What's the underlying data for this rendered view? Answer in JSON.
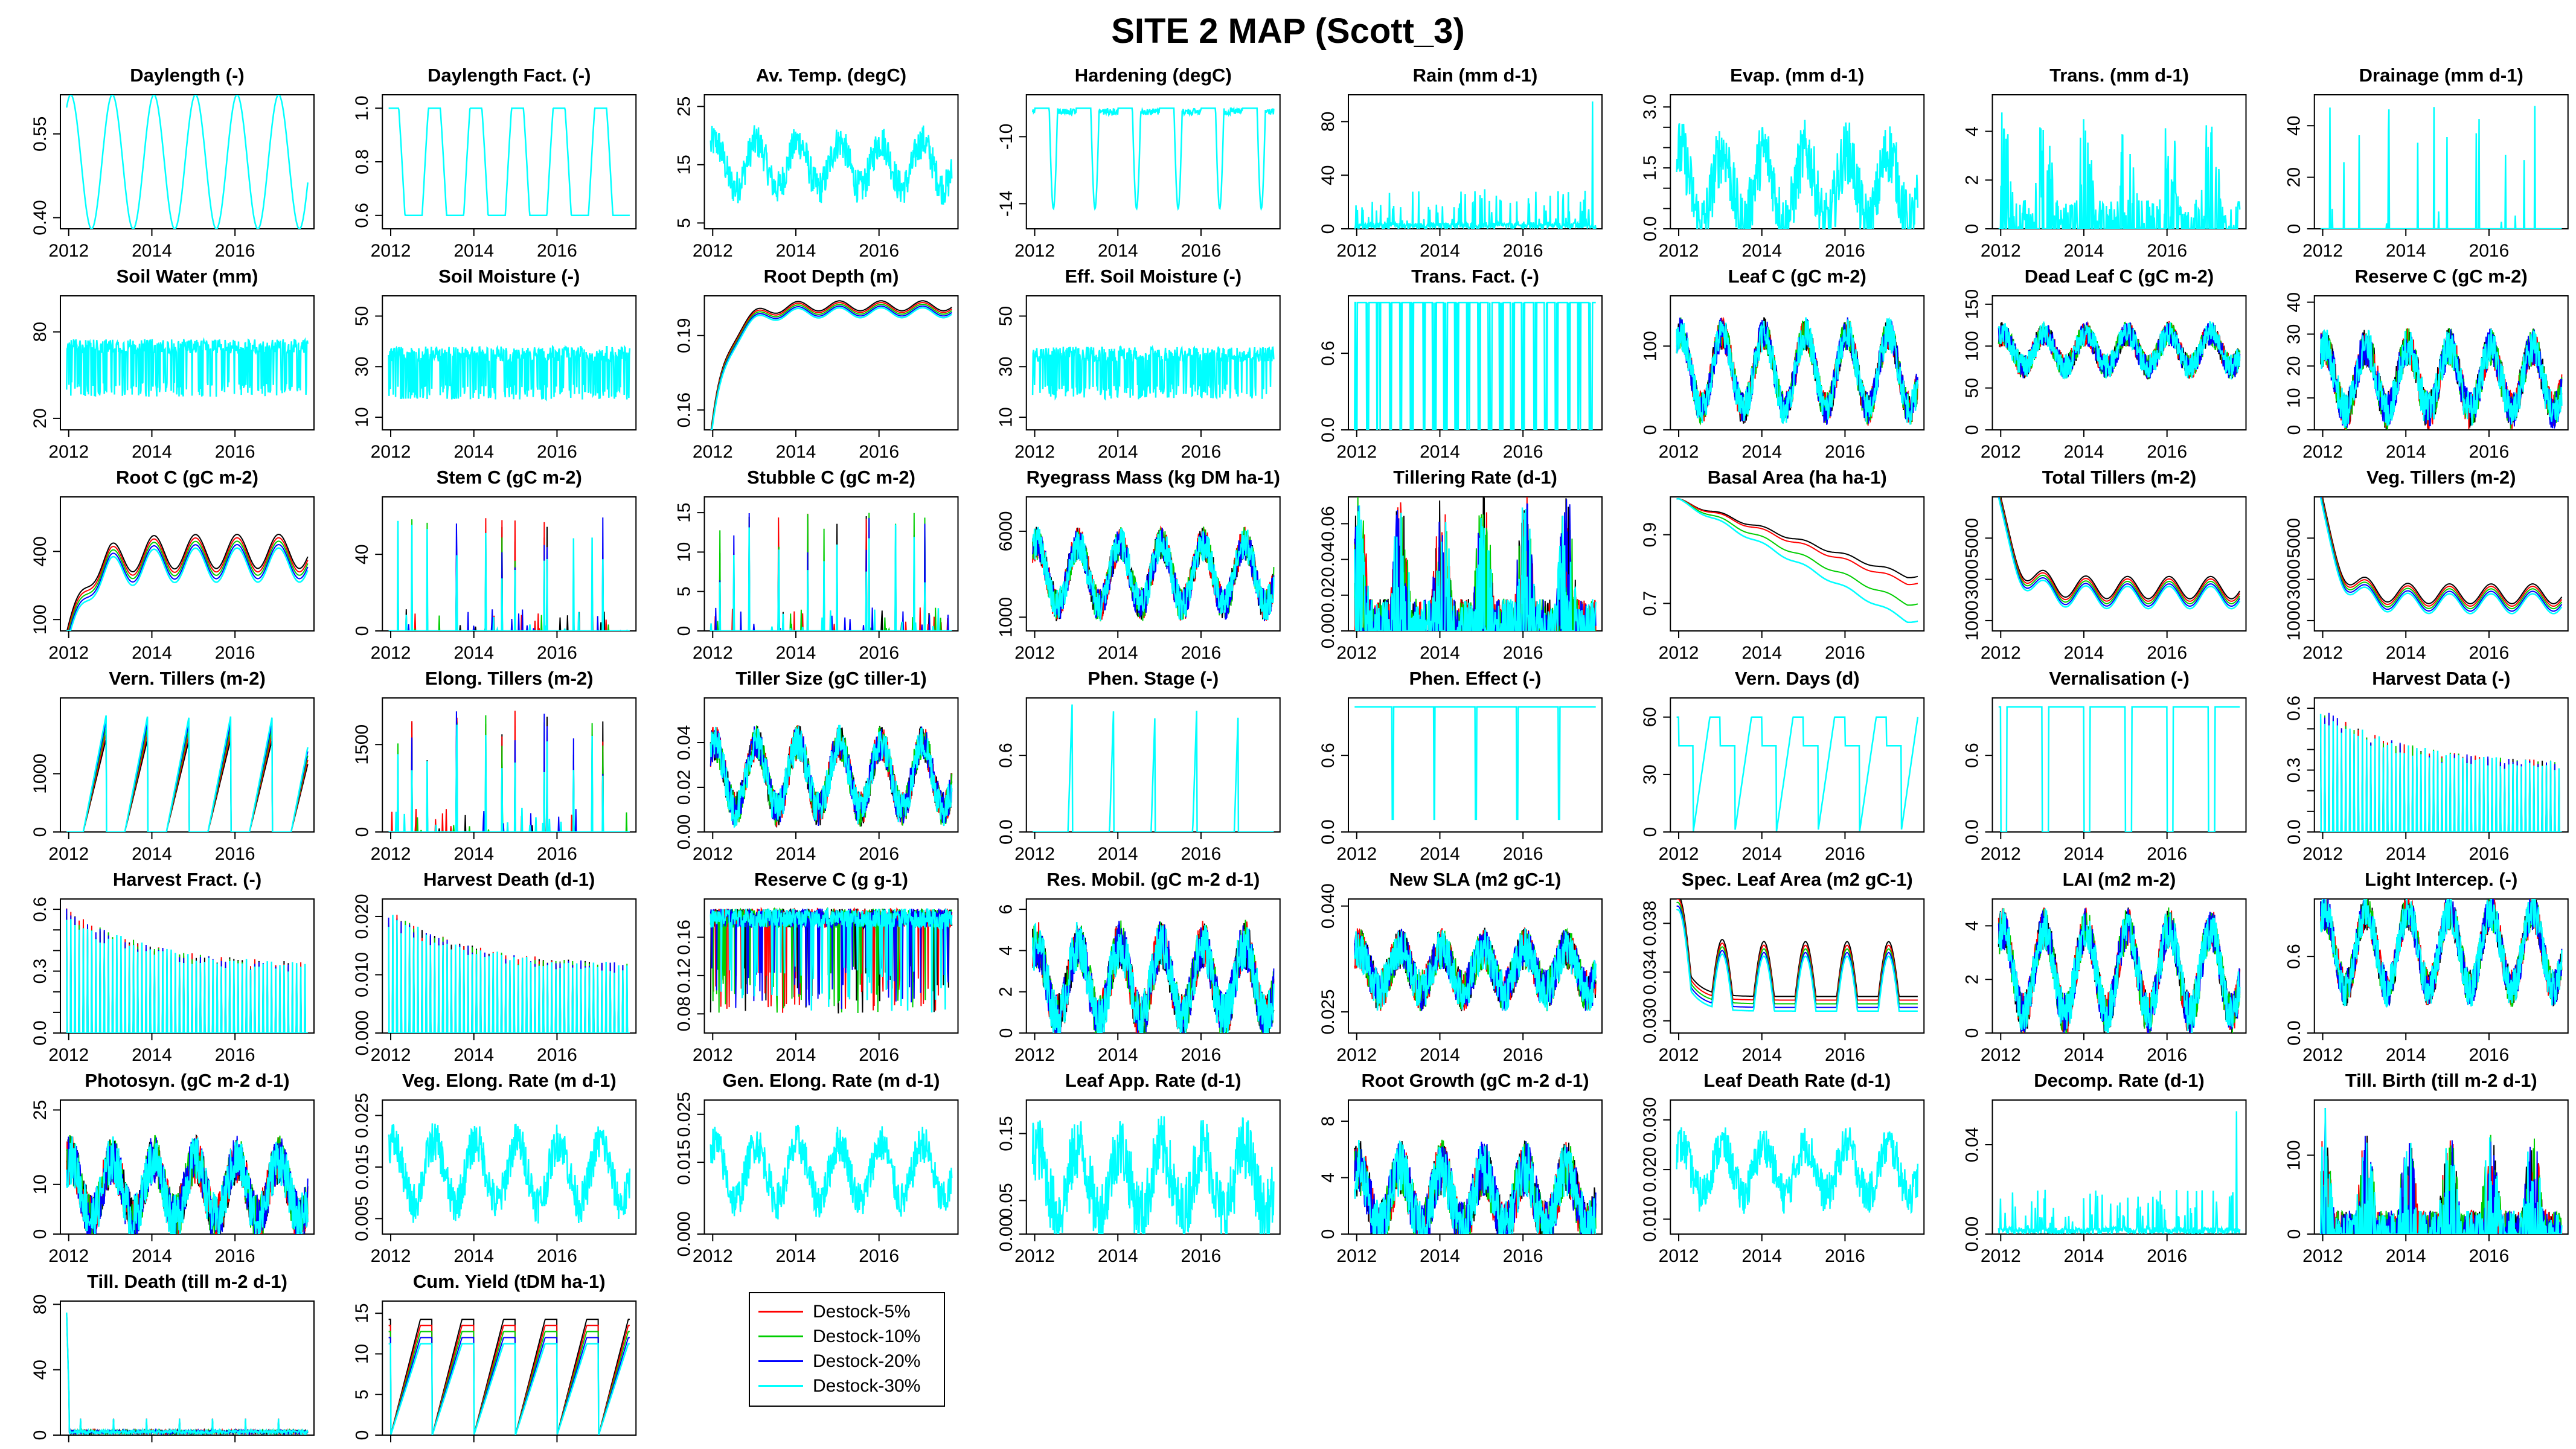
{
  "title": "SITE 2 MAP (Scott_3)",
  "x_tick_labels": [
    "2012",
    "2014",
    "2016"
  ],
  "legend": [
    {
      "name": "Destock-5%",
      "color": "#ff0000"
    },
    {
      "name": "Destock-10%",
      "color": "#00cd00"
    },
    {
      "name": "Destock-20%",
      "color": "#0000ff"
    },
    {
      "name": "Destock-30%",
      "color": "#00ffff"
    }
  ],
  "extra_series_color": "#000000",
  "chart_data": [
    {
      "title": "Daylength (-)",
      "type": "line",
      "xlim": [
        2011.8,
        2017.9
      ],
      "ylim": [
        0.38,
        0.62
      ],
      "yticks": [
        "0.40",
        "0.55"
      ],
      "shape": "seasonal",
      "base": 0.5,
      "amp": 0.12
    },
    {
      "title": "Daylength Fact. (-)",
      "type": "line",
      "xlim": [
        2011.8,
        2017.9
      ],
      "ylim": [
        0.55,
        1.05
      ],
      "yticks": [
        "0.6",
        "0.8",
        "1.0"
      ],
      "shape": "seasonal_clip",
      "base": 0.72,
      "amp": 0.45,
      "clip": [
        0.6,
        1.0
      ]
    },
    {
      "title": "Av. Temp. (degC)",
      "type": "line",
      "xlim": [
        2011.8,
        2017.9
      ],
      "ylim": [
        4,
        27
      ],
      "yticks": [
        "5",
        "15",
        "25"
      ],
      "shape": "noisy_seasonal",
      "base": 15,
      "amp": 4,
      "noise": 3
    },
    {
      "title": "Hardening (degC)",
      "type": "line",
      "xlim": [
        2011.8,
        2017.9
      ],
      "ylim": [
        -15.5,
        -7.5
      ],
      "yticks": [
        "-14",
        "-10"
      ],
      "shape": "hardening"
    },
    {
      "title": "Rain (mm d-1)",
      "type": "line",
      "xlim": [
        2011.8,
        2017.9
      ],
      "ylim": [
        0,
        100
      ],
      "yticks": [
        "0",
        "40",
        "80"
      ],
      "shape": "spiky",
      "noise": 30,
      "max": 95
    },
    {
      "title": "Evap. (mm d-1)",
      "type": "line",
      "xlim": [
        2011.8,
        2017.9
      ],
      "ylim": [
        0,
        3.3
      ],
      "yticks": [
        "0.0",
        "1.5",
        "3.0"
      ],
      "extra_yticks": [
        "0.5",
        "1.0",
        "2.0",
        "2.5"
      ],
      "shape": "noisy_seasonal_pos",
      "base": 1.0,
      "amp": 0.9,
      "noise": 0.8
    },
    {
      "title": "Trans. (mm d-1)",
      "type": "line",
      "xlim": [
        2011.8,
        2017.9
      ],
      "ylim": [
        0,
        5.5
      ],
      "yticks": [
        "0",
        "2",
        "4"
      ],
      "shape": "spiky_season",
      "noise": 4
    },
    {
      "title": "Drainage (mm d-1)",
      "type": "line",
      "xlim": [
        2011.8,
        2017.9
      ],
      "ylim": [
        0,
        52
      ],
      "yticks": [
        "0",
        "20",
        "40"
      ],
      "shape": "rare_spikes",
      "max": 50
    },
    {
      "title": "Soil Water (mm)",
      "type": "line",
      "xlim": [
        2011.8,
        2017.9
      ],
      "ylim": [
        12,
        105
      ],
      "yticks": [
        "20",
        "80"
      ],
      "shape": "plateau",
      "top": 70,
      "low": 40,
      "noise": 10
    },
    {
      "title": "Soil Moisture (-)",
      "type": "line",
      "xlim": [
        2011.8,
        2017.9
      ],
      "ylim": [
        5,
        58
      ],
      "yticks": [
        "10",
        "30",
        "50"
      ],
      "shape": "plateau",
      "top": 35,
      "low": 20,
      "noise": 6
    },
    {
      "title": "Root Depth (m)",
      "type": "line",
      "xlim": [
        2011.8,
        2017.9
      ],
      "ylim": [
        0.152,
        0.206
      ],
      "yticks": [
        "0.16",
        "0.19"
      ],
      "shape": "saturating",
      "start": 0.155,
      "end": 0.202,
      "multi": true
    },
    {
      "title": "Eff. Soil Moisture (-)",
      "type": "line",
      "xlim": [
        2011.8,
        2017.9
      ],
      "ylim": [
        5,
        58
      ],
      "yticks": [
        "10",
        "30",
        "50"
      ],
      "shape": "plateau",
      "top": 35,
      "low": 20,
      "noise": 6
    },
    {
      "title": "Trans. Fact. (-)",
      "type": "line",
      "xlim": [
        2011.8,
        2017.9
      ],
      "ylim": [
        0,
        1.05
      ],
      "yticks": [
        "0.0",
        "0.6"
      ],
      "shape": "binary"
    },
    {
      "title": "Leaf C (gC m-2)",
      "type": "line",
      "xlim": [
        2011.8,
        2017.9
      ],
      "ylim": [
        0,
        160
      ],
      "yticks": [
        "0",
        "100"
      ],
      "shape": "noisy_seasonal_pos",
      "base": 70,
      "amp": 45,
      "noise": 20,
      "multi": true
    },
    {
      "title": "Dead Leaf C (gC m-2)",
      "type": "line",
      "xlim": [
        2011.8,
        2017.9
      ],
      "ylim": [
        0,
        160
      ],
      "yticks": [
        "0",
        "50",
        "100",
        "150"
      ],
      "shape": "noisy_seasonal_pos",
      "base": 95,
      "amp": 20,
      "noise": 15,
      "multi": true
    },
    {
      "title": "Reserve C (gC m-2)",
      "type": "line",
      "xlim": [
        2011.8,
        2017.9
      ],
      "ylim": [
        0,
        42
      ],
      "yticks": [
        "0",
        "10",
        "20",
        "30",
        "40"
      ],
      "shape": "noisy_seasonal_pos",
      "base": 16,
      "amp": 10,
      "noise": 6,
      "multi": true
    },
    {
      "title": "Root C (gC m-2)",
      "type": "line",
      "xlim": [
        2011.8,
        2017.9
      ],
      "ylim": [
        50,
        640
      ],
      "yticks": [
        "100",
        "400"
      ],
      "shape": "growing_seasonal",
      "start": 80,
      "base": 400,
      "amp": 150,
      "multi": true
    },
    {
      "title": "Stem C (gC m-2)",
      "type": "line",
      "xlim": [
        2011.8,
        2017.9
      ],
      "ylim": [
        0,
        70
      ],
      "yticks": [
        "0",
        "40"
      ],
      "shape": "rare_spikes",
      "max": 60,
      "multi": true
    },
    {
      "title": "Stubble C (gC m-2)",
      "type": "line",
      "xlim": [
        2011.8,
        2017.9
      ],
      "ylim": [
        0,
        17
      ],
      "yticks": [
        "0",
        "5",
        "10",
        "15"
      ],
      "shape": "rare_spikes",
      "max": 15,
      "multi": true
    },
    {
      "title": "Ryegrass Mass (kg DM ha-1)",
      "type": "line",
      "xlim": [
        2011.8,
        2017.9
      ],
      "ylim": [
        200,
        8000
      ],
      "yticks": [
        "1000",
        "6000"
      ],
      "shape": "noisy_seasonal_pos",
      "base": 3500,
      "amp": 1800,
      "noise": 1000,
      "multi": true
    },
    {
      "title": "Tillering Rate (d-1)",
      "type": "line",
      "xlim": [
        2011.8,
        2017.9
      ],
      "ylim": [
        0,
        0.075
      ],
      "yticks": [
        "0.00",
        "0.02",
        "0.04",
        "0.06"
      ],
      "shape": "spiky_season",
      "noise": 0.06,
      "multi": true
    },
    {
      "title": "Basal Area (ha ha-1)",
      "type": "line",
      "xlim": [
        2011.8,
        2017.9
      ],
      "ylim": [
        0.62,
        1.01
      ],
      "yticks": [
        "0.7",
        "0.9"
      ],
      "shape": "declining",
      "start": 1.0,
      "ends": [
        0.78,
        0.76,
        0.7,
        0.65
      ],
      "multi": true
    },
    {
      "title": "Total Tillers (m-2)",
      "type": "line",
      "xlim": [
        2011.8,
        2017.9
      ],
      "ylim": [
        500,
        7000
      ],
      "yticks": [
        "1000",
        "3000",
        "5000"
      ],
      "shape": "declining_seasonal",
      "start": 6500,
      "base": 2600,
      "amp": 900,
      "multi": true
    },
    {
      "title": "Veg. Tillers (m-2)",
      "type": "line",
      "xlim": [
        2011.8,
        2017.9
      ],
      "ylim": [
        500,
        7000
      ],
      "yticks": [
        "1000",
        "3000",
        "5000"
      ],
      "shape": "declining_seasonal",
      "start": 6500,
      "base": 2300,
      "amp": 800,
      "multi": true
    },
    {
      "title": "Vern. Tillers (m-2)",
      "type": "line",
      "xlim": [
        2011.8,
        2017.9
      ],
      "ylim": [
        0,
        2300
      ],
      "yticks": [
        "0",
        "1000"
      ],
      "shape": "sawtooth",
      "max": 2000,
      "multi": true
    },
    {
      "title": "Elong. Tillers (m-2)",
      "type": "line",
      "xlim": [
        2011.8,
        2017.9
      ],
      "ylim": [
        0,
        2300
      ],
      "yticks": [
        "0",
        "1500"
      ],
      "shape": "rare_spikes",
      "max": 2100,
      "multi": true
    },
    {
      "title": "Tiller Size (gC tiller-1)",
      "type": "line",
      "xlim": [
        2011.8,
        2017.9
      ],
      "ylim": [
        0,
        0.06
      ],
      "yticks": [
        "0.00",
        "0.02",
        "0.04"
      ],
      "shape": "noisy_seasonal_pos",
      "base": 0.025,
      "amp": 0.015,
      "noise": 0.008,
      "multi": true
    },
    {
      "title": "Phen. Stage (-)",
      "type": "line",
      "xlim": [
        2011.8,
        2017.9
      ],
      "ylim": [
        0,
        1.05
      ],
      "yticks": [
        "0.0",
        "0.6"
      ],
      "shape": "phen_spikes"
    },
    {
      "title": "Phen. Effect (-)",
      "type": "line",
      "xlim": [
        2011.8,
        2017.9
      ],
      "ylim": [
        0,
        1.05
      ],
      "yticks": [
        "0.0",
        "0.6"
      ],
      "shape": "dips"
    },
    {
      "title": "Vern. Days (d)",
      "type": "line",
      "xlim": [
        2011.8,
        2017.9
      ],
      "ylim": [
        0,
        70
      ],
      "yticks": [
        "0",
        "30",
        "60"
      ],
      "shape": "vern_days"
    },
    {
      "title": "Vernalisation (-)",
      "type": "line",
      "xlim": [
        2011.8,
        2017.9
      ],
      "ylim": [
        0,
        1.05
      ],
      "yticks": [
        "0.0",
        "0.6"
      ],
      "shape": "square"
    },
    {
      "title": "Harvest Data (-)",
      "type": "line",
      "xlim": [
        2011.8,
        2017.9
      ],
      "ylim": [
        0,
        0.65
      ],
      "yticks": [
        "0.0",
        "0.3",
        "0.6"
      ],
      "extra_yticks": [
        "0.1",
        "0.2",
        "0.4",
        "0.5"
      ],
      "shape": "harvest",
      "max": 0.6,
      "multi": true
    },
    {
      "title": "Harvest Fract. (-)",
      "type": "line",
      "xlim": [
        2011.8,
        2017.9
      ],
      "ylim": [
        0,
        0.65
      ],
      "yticks": [
        "0.0",
        "0.3",
        "0.6"
      ],
      "extra_yticks": [
        "0.1",
        "0.2",
        "0.4",
        "0.5"
      ],
      "shape": "harvest",
      "max": 0.6,
      "multi": true
    },
    {
      "title": "Harvest Death (d-1)",
      "type": "line",
      "xlim": [
        2011.8,
        2017.9
      ],
      "ylim": [
        0,
        0.023
      ],
      "yticks": [
        "0.000",
        "0.010",
        "0.020"
      ],
      "shape": "harvest",
      "max": 0.021,
      "multi": true
    },
    {
      "title": "Reserve C (g g-1)",
      "type": "line",
      "xlim": [
        2011.8,
        2017.9
      ],
      "ylim": [
        0.06,
        0.2
      ],
      "yticks": [
        "0.08",
        "0.12",
        "0.16"
      ],
      "shape": "top_noisy",
      "top": 0.19,
      "low": 0.13,
      "multi": true
    },
    {
      "title": "Res. Mobil. (gC m-2 d-1)",
      "type": "line",
      "xlim": [
        2011.8,
        2017.9
      ],
      "ylim": [
        0,
        6.5
      ],
      "yticks": [
        "0",
        "2",
        "4",
        "6"
      ],
      "shape": "noisy_seasonal_pos",
      "base": 2.5,
      "amp": 1.8,
      "noise": 1.2,
      "multi": true
    },
    {
      "title": "New SLA (m2 gC-1)",
      "type": "line",
      "xlim": [
        2011.8,
        2017.9
      ],
      "ylim": [
        0.022,
        0.041
      ],
      "yticks": [
        "0.025",
        "0.040"
      ],
      "shape": "noisy_seasonal",
      "base": 0.031,
      "amp": 0.003,
      "noise": 0.003,
      "multi": true
    },
    {
      "title": "Spec. Leaf Area (m2 gC-1)",
      "type": "line",
      "xlim": [
        2011.8,
        2017.9
      ],
      "ylim": [
        0.029,
        0.04
      ],
      "yticks": [
        "0.030",
        "0.034",
        "0.038"
      ],
      "shape": "decay_seasonal",
      "base": 0.032,
      "amp": 0.003,
      "multi": true
    },
    {
      "title": "LAI (m2 m-2)",
      "type": "line",
      "xlim": [
        2011.8,
        2017.9
      ],
      "ylim": [
        0,
        5
      ],
      "yticks": [
        "0",
        "2",
        "4"
      ],
      "shape": "noisy_seasonal_pos",
      "base": 2.3,
      "amp": 1.6,
      "noise": 0.8,
      "multi": true
    },
    {
      "title": "Light Intercep. (-)",
      "type": "line",
      "xlim": [
        2011.8,
        2017.9
      ],
      "ylim": [
        0,
        1.05
      ],
      "yticks": [
        "0.0",
        "0.6"
      ],
      "shape": "noisy_seasonal_pos",
      "base": 0.65,
      "amp": 0.3,
      "noise": 0.15,
      "multi": true
    },
    {
      "title": "Photosyn. (gC m-2 d-1)",
      "type": "line",
      "xlim": [
        2011.8,
        2017.9
      ],
      "ylim": [
        0,
        27
      ],
      "yticks": [
        "0",
        "10",
        "25"
      ],
      "shape": "noisy_seasonal_pos",
      "base": 9,
      "amp": 6,
      "noise": 5,
      "multi": true
    },
    {
      "title": "Veg. Elong. Rate (m d-1)",
      "type": "line",
      "xlim": [
        2011.8,
        2017.9
      ],
      "ylim": [
        0.002,
        0.028
      ],
      "yticks": [
        "0.005",
        "0.015",
        "0.025"
      ],
      "shape": "noisy_seasonal",
      "base": 0.014,
      "amp": 0.006,
      "noise": 0.004
    },
    {
      "title": "Gen. Elong. Rate (m d-1)",
      "type": "line",
      "xlim": [
        2011.8,
        2017.9
      ],
      "ylim": [
        0,
        0.028
      ],
      "yticks": [
        "0.000",
        "0.015",
        "0.025"
      ],
      "shape": "noisy_seasonal",
      "base": 0.013,
      "amp": 0.006,
      "noise": 0.004
    },
    {
      "title": "Leaf App. Rate (d-1)",
      "type": "line",
      "xlim": [
        2011.8,
        2017.9
      ],
      "ylim": [
        0,
        0.2
      ],
      "yticks": [
        "0.00",
        "0.05",
        "0.15"
      ],
      "shape": "noisy_seasonal_pos",
      "base": 0.08,
      "amp": 0.05,
      "noise": 0.05
    },
    {
      "title": "Root Growth (gC m-2 d-1)",
      "type": "line",
      "xlim": [
        2011.8,
        2017.9
      ],
      "ylim": [
        0,
        9.5
      ],
      "yticks": [
        "0",
        "4",
        "8"
      ],
      "shape": "noisy_seasonal_pos",
      "base": 2.5,
      "amp": 2.2,
      "noise": 2,
      "multi": true
    },
    {
      "title": "Leaf Death Rate (d-1)",
      "type": "line",
      "xlim": [
        2011.8,
        2017.9
      ],
      "ylim": [
        0.007,
        0.034
      ],
      "yticks": [
        "0.010",
        "0.020",
        "0.030"
      ],
      "shape": "noisy_seasonal",
      "base": 0.02,
      "amp": 0.005,
      "noise": 0.004
    },
    {
      "title": "Decomp. Rate (d-1)",
      "type": "line",
      "xlim": [
        2011.8,
        2017.9
      ],
      "ylim": [
        0,
        0.06
      ],
      "yticks": [
        "0.00",
        "0.04"
      ],
      "shape": "spiky",
      "noise": 0.02,
      "max": 0.055
    },
    {
      "title": "Till. Birth (till m-2 d-1)",
      "type": "line",
      "xlim": [
        2011.8,
        2017.9
      ],
      "ylim": [
        0,
        170
      ],
      "yticks": [
        "0",
        "100"
      ],
      "shape": "spiky_season",
      "noise": 100,
      "max": 160,
      "multi": true
    },
    {
      "title": "Till. Death (till m-2 d-1)",
      "type": "line",
      "xlim": [
        2011.8,
        2017.9
      ],
      "ylim": [
        0,
        82
      ],
      "yticks": [
        "0",
        "40",
        "80"
      ],
      "shape": "till_death",
      "multi": true
    },
    {
      "title": "Cum. Yield (tDM ha-1)",
      "type": "line",
      "xlim": [
        2011.8,
        2017.9
      ],
      "ylim": [
        0,
        16.5
      ],
      "yticks": [
        "0",
        "5",
        "10",
        "15"
      ],
      "shape": "cumulative",
      "max": 15,
      "multi": true
    }
  ]
}
